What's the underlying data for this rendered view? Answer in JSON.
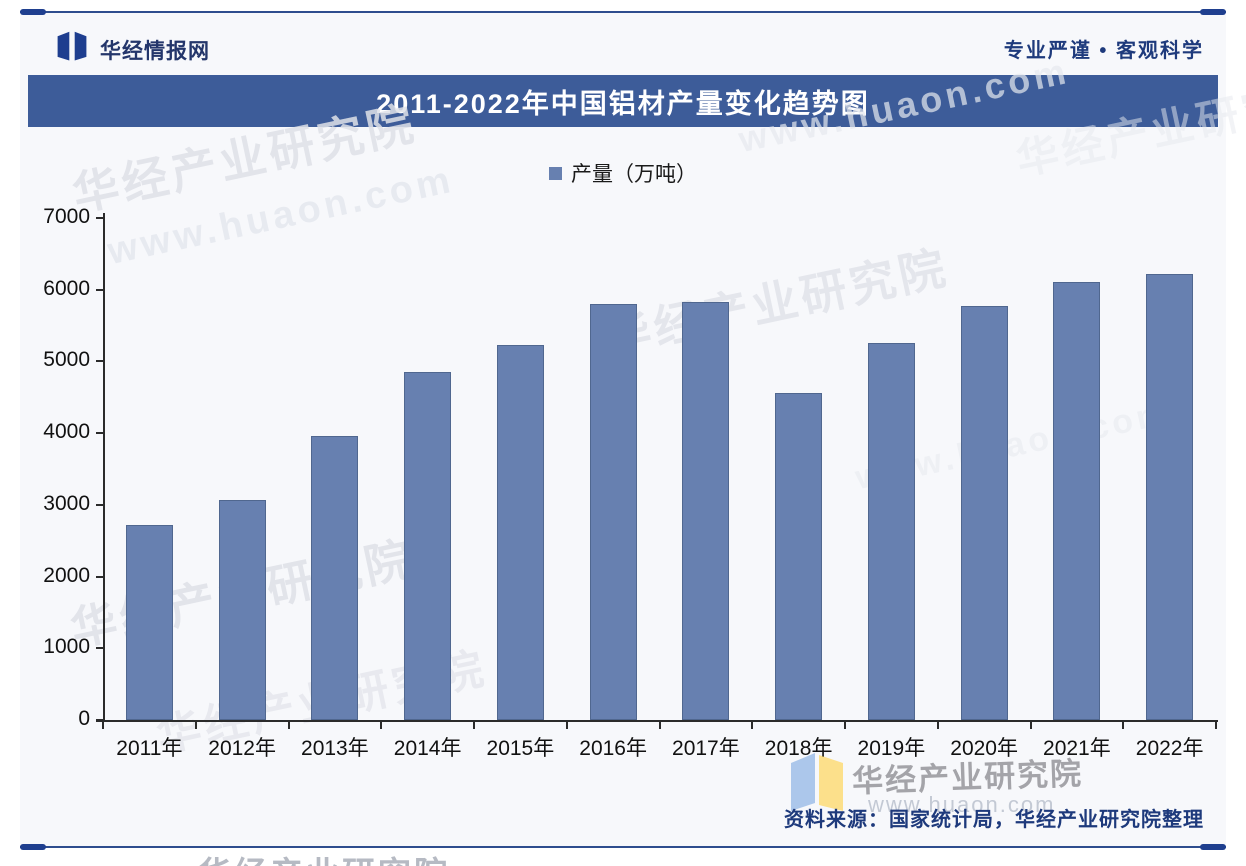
{
  "header": {
    "brand": "华经情报网",
    "slogan": "专业严谨 • 客观科学"
  },
  "title": "2011-2022年中国铝材产量变化趋势图",
  "legend": {
    "label": "产量（万吨）"
  },
  "chart_data": {
    "type": "bar",
    "title": "2011-2022年中国铝材产量变化趋势图",
    "series_name": "产量（万吨）",
    "categories": [
      "2011年",
      "2012年",
      "2013年",
      "2014年",
      "2015年",
      "2016年",
      "2017年",
      "2018年",
      "2019年",
      "2020年",
      "2021年",
      "2022年"
    ],
    "values": [
      2726,
      3074,
      3963,
      4846,
      5236,
      5796,
      5832,
      4555,
      5252,
      5779,
      6105,
      6222
    ],
    "xlabel": "",
    "ylabel": "",
    "ylim": [
      0,
      7000
    ],
    "ytick_interval": 1000,
    "ytick_labels": [
      "0",
      "1000",
      "2000",
      "3000",
      "4000",
      "5000",
      "6000",
      "7000"
    ],
    "grid": false,
    "legend_position": "top",
    "bar_color": "#6780b0"
  },
  "footer": {
    "source": "资料来源：国家统计局，华经产业研究院整理",
    "brand_watermark": "华经产业研究院",
    "url_watermark": "www.huaon.com"
  },
  "watermarks": {
    "brand_text": "华经产业研究院",
    "url_text": "www.huaon.com"
  },
  "colors": {
    "title_bar": "#3d5c99",
    "bar_fill": "#6780b0",
    "bar_border": "#50678f",
    "accent_line": "#2e4d8e",
    "header_text": "#1e3a7c"
  }
}
